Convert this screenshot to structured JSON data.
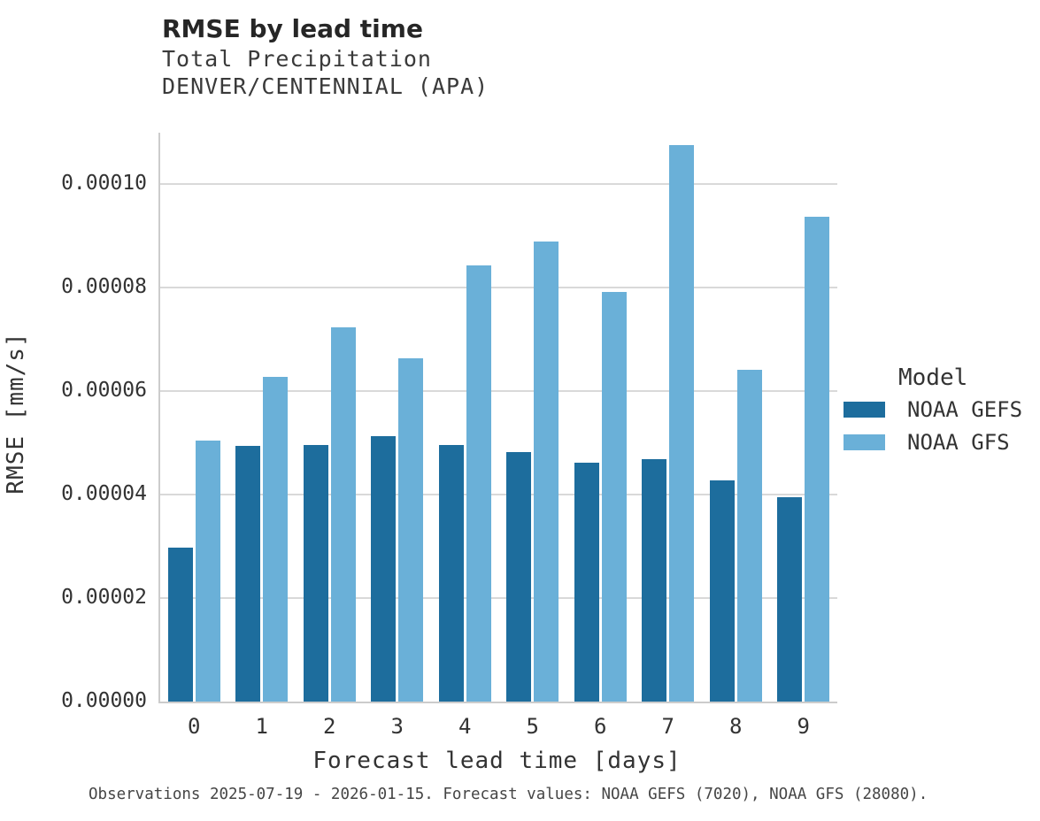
{
  "header": {
    "title": "RMSE by lead time",
    "subtitle_line1": "Total Precipitation",
    "subtitle_line2": "DENVER/CENTENNIAL (APA)"
  },
  "chart_data": {
    "type": "bar",
    "title": "RMSE by lead time",
    "subtitle": [
      "Total Precipitation",
      "DENVER/CENTENNIAL (APA)"
    ],
    "categories": [
      "0",
      "1",
      "2",
      "3",
      "4",
      "5",
      "6",
      "7",
      "8",
      "9"
    ],
    "series": [
      {
        "name": "NOAA GEFS",
        "color": "#1d6d9d",
        "values": [
          2.98e-05,
          4.95e-05,
          4.96e-05,
          5.13e-05,
          4.96e-05,
          4.83e-05,
          4.62e-05,
          4.69e-05,
          4.28e-05,
          3.96e-05
        ]
      },
      {
        "name": "NOAA GFS",
        "color": "#6ab0d8",
        "values": [
          5.05e-05,
          6.28e-05,
          7.24e-05,
          6.64e-05,
          8.44e-05,
          8.9e-05,
          7.92e-05,
          0.0001076,
          6.42e-05,
          9.37e-05
        ]
      }
    ],
    "xlabel": "Forecast lead time [days]",
    "ylabel": "RMSE [mm/s]",
    "ylim": [
      0,
      0.00011
    ],
    "yticks": [
      0,
      2e-05,
      4e-05,
      6e-05,
      8e-05,
      0.0001
    ],
    "ytick_labels": [
      "0.00000",
      "0.00002",
      "0.00004",
      "0.00006",
      "0.00008",
      "0.00010"
    ],
    "grid": "horizontal",
    "legend_title": "Model",
    "legend_position": "right"
  },
  "legend": {
    "title": "Model",
    "items": [
      {
        "label": "NOAA GEFS",
        "color": "#1d6d9d"
      },
      {
        "label": "NOAA GFS",
        "color": "#6ab0d8"
      }
    ]
  },
  "caption": "Observations 2025-07-19 - 2026-01-15. Forecast values: NOAA GEFS (7020), NOAA GFS (28080)."
}
